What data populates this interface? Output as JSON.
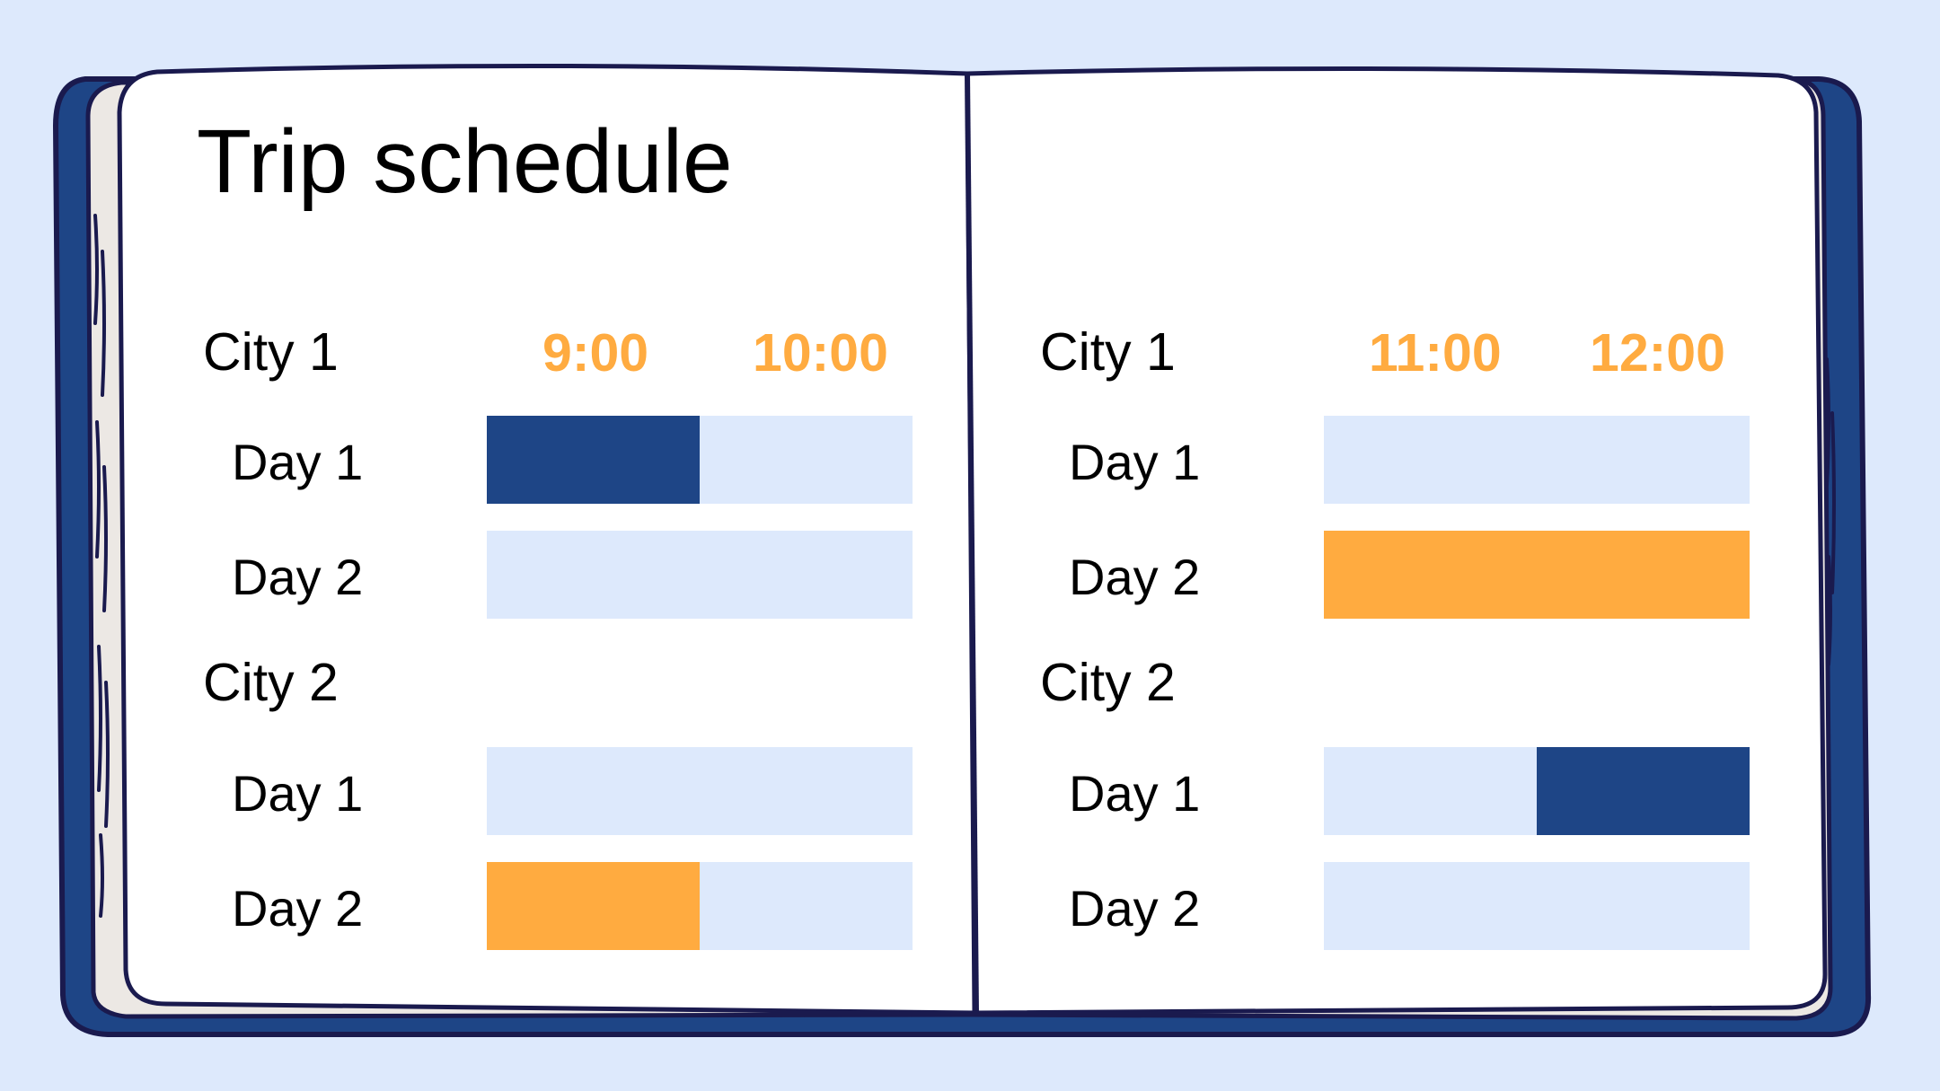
{
  "title": "Trip schedule",
  "colors": {
    "background": "#dde9fc",
    "cover": "#1e4586",
    "outline": "#1a1a4e",
    "track": "#dde9fc",
    "blue_block": "#1e4586",
    "orange_block": "#ffab40",
    "time_label": "#ffab40"
  },
  "pages": [
    {
      "times": [
        "9:00",
        "10:00"
      ],
      "cities": [
        {
          "name": "City 1",
          "days": [
            {
              "label": "Day 1",
              "start": 0.0,
              "end": 0.5,
              "color": "blue"
            },
            {
              "label": "Day 2",
              "start": 0.0,
              "end": 0.0,
              "color": "none"
            }
          ]
        },
        {
          "name": "City 2",
          "days": [
            {
              "label": "Day 1",
              "start": 0.0,
              "end": 0.0,
              "color": "none"
            },
            {
              "label": "Day 2",
              "start": 0.0,
              "end": 0.5,
              "color": "orange"
            }
          ]
        }
      ]
    },
    {
      "times": [
        "11:00",
        "12:00"
      ],
      "cities": [
        {
          "name": "City 1",
          "days": [
            {
              "label": "Day 1",
              "start": 0.0,
              "end": 0.0,
              "color": "none"
            },
            {
              "label": "Day 2",
              "start": 0.0,
              "end": 1.0,
              "color": "orange"
            }
          ]
        },
        {
          "name": "City 2",
          "days": [
            {
              "label": "Day 1",
              "start": 0.5,
              "end": 1.0,
              "color": "blue"
            },
            {
              "label": "Day 2",
              "start": 0.0,
              "end": 0.0,
              "color": "none"
            }
          ]
        }
      ]
    }
  ]
}
